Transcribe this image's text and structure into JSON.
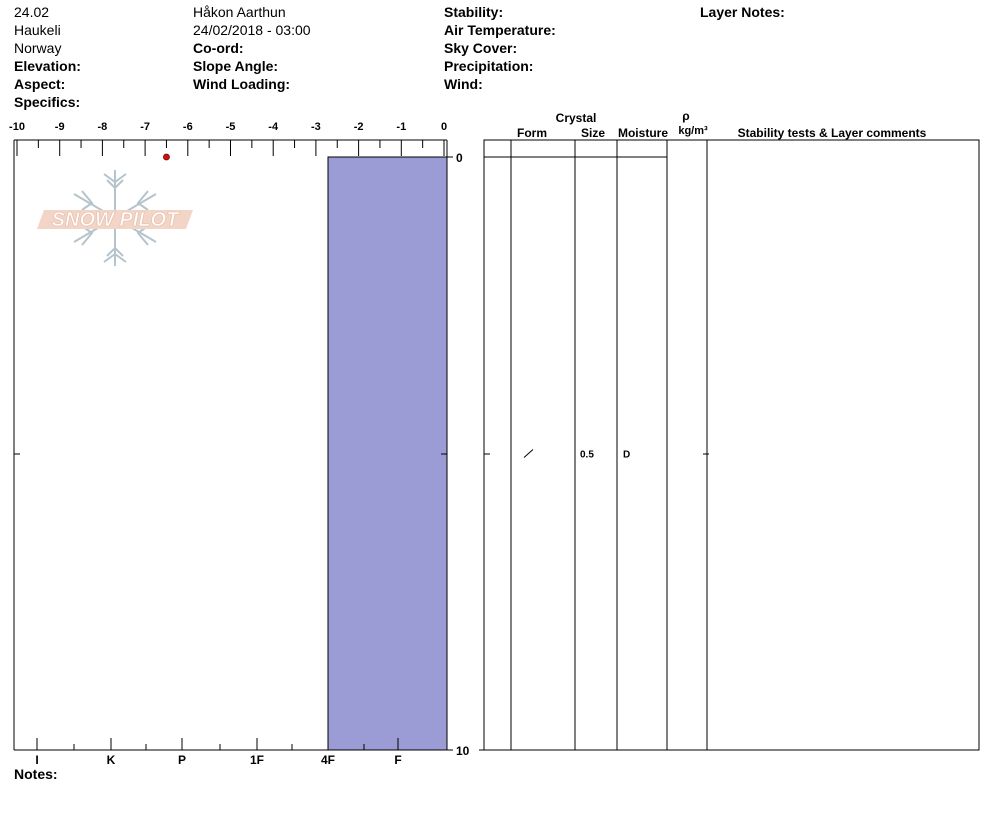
{
  "header": {
    "col1": [
      "24.02",
      "Haukeli",
      "Norway"
    ],
    "elevation_label": "Elevation:",
    "aspect_label": "Aspect:",
    "specifics_label": "Specifics:",
    "observer": "Håkon Aarthun",
    "datetime": "24/02/2018 - 03:00",
    "coord_label": "Co-ord:",
    "slope_label": "Slope Angle:",
    "wind_loading_label": "Wind Loading:",
    "stability_label": "Stability:",
    "air_temp_label": "Air Temperature:",
    "sky_cover_label": "Sky Cover:",
    "precip_label": "Precipitation:",
    "wind_label": "Wind:",
    "layer_notes_label": "Layer Notes:"
  },
  "watermark": {
    "text": "SNOW PILOT",
    "colors": {
      "fill": "#f2d5c7",
      "outline": "#f7e6dc",
      "snowflake": "#b5c3cc"
    }
  },
  "chart_data": {
    "type": "snow-profile",
    "temperature_axis": {
      "ticks": [
        "-10",
        "-9",
        "-8",
        "-7",
        "-6",
        "-5",
        "-4",
        "-3",
        "-2",
        "-1",
        "0"
      ],
      "range": [
        -10,
        0
      ]
    },
    "depth_axis": {
      "labels": [
        "0",
        "10"
      ],
      "range": [
        0,
        10
      ]
    },
    "hardness_axis": {
      "ticks": [
        "I",
        "K",
        "P",
        "1F",
        "4F",
        "F"
      ]
    },
    "temperature_points": [
      {
        "temp": -6.5,
        "depth": 0
      }
    ],
    "layers": [
      {
        "top": 0,
        "bottom": 10,
        "hardness": "4F",
        "form_symbol": "/",
        "size": "0.5",
        "moisture": "D",
        "density": ""
      }
    ],
    "table_headers": {
      "crystal": "Crystal",
      "form": "Form",
      "size": "Size",
      "moisture": "Moisture",
      "rho": "ρ",
      "density_unit": "kg/m³",
      "comments": "Stability tests & Layer comments"
    },
    "colors": {
      "layer_fill": "#9b9bd5",
      "temp_point": "#cc1111"
    }
  },
  "notes_label": "Notes:"
}
